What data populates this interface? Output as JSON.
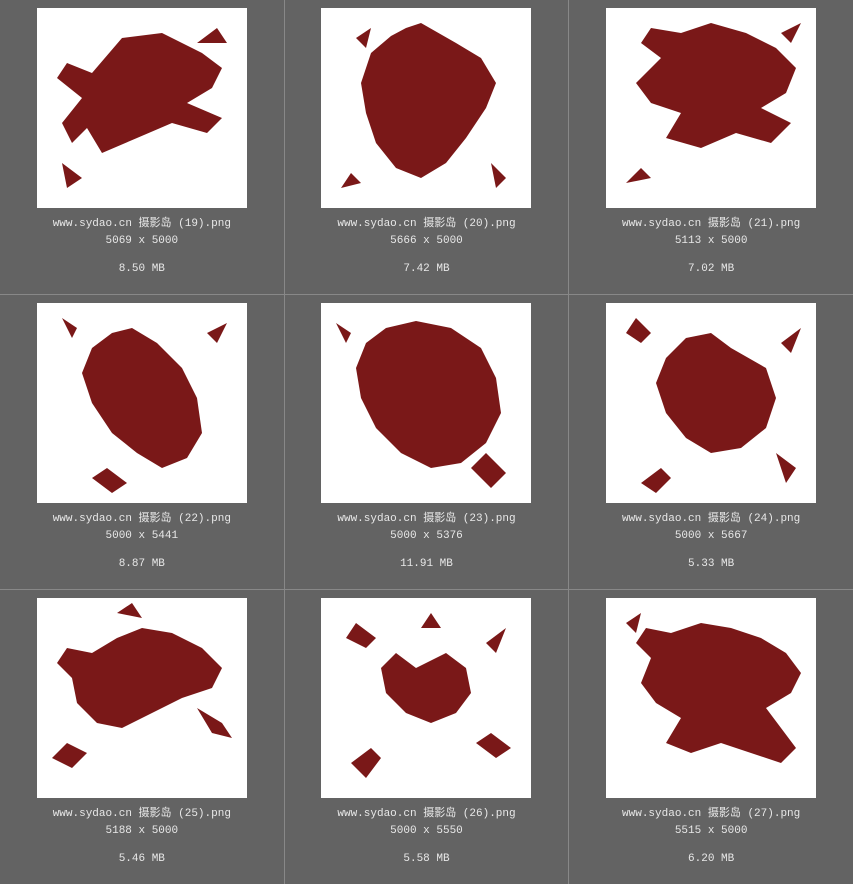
{
  "grid": {
    "columns": 3,
    "rows": 3,
    "background_color": "#636363",
    "divider_color": "#888888",
    "thumb_background": "#ffffff",
    "text_color": "#e8e8e8",
    "font_family": "Courier New, monospace",
    "font_size": 11,
    "splash_color": "#7a1818"
  },
  "items": [
    {
      "filename": "www.sydao.cn 摄影岛 (19).png",
      "dimensions": "5069 x 5000",
      "filesize": "8.50 MB",
      "splash_variant": 0
    },
    {
      "filename": "www.sydao.cn 摄影岛 (20).png",
      "dimensions": "5666 x 5000",
      "filesize": "7.42 MB",
      "splash_variant": 1
    },
    {
      "filename": "www.sydao.cn 摄影岛 (21).png",
      "dimensions": "5113 x 5000",
      "filesize": "7.02 MB",
      "splash_variant": 2
    },
    {
      "filename": "www.sydao.cn 摄影岛 (22).png",
      "dimensions": "5000 x 5441",
      "filesize": "8.87 MB",
      "splash_variant": 3
    },
    {
      "filename": "www.sydao.cn 摄影岛 (23).png",
      "dimensions": "5000 x 5376",
      "filesize": "11.91 MB",
      "splash_variant": 4
    },
    {
      "filename": "www.sydao.cn 摄影岛 (24).png",
      "dimensions": "5000 x 5667",
      "filesize": "5.33 MB",
      "splash_variant": 5
    },
    {
      "filename": "www.sydao.cn 摄影岛 (25).png",
      "dimensions": "5188 x 5000",
      "filesize": "5.46 MB",
      "splash_variant": 6
    },
    {
      "filename": "www.sydao.cn 摄影岛 (26).png",
      "dimensions": "5000 x 5550",
      "filesize": "5.58 MB",
      "splash_variant": 7
    },
    {
      "filename": "www.sydao.cn 摄影岛 (27).png",
      "dimensions": "5515 x 5000",
      "filesize": "6.20 MB",
      "splash_variant": 8
    }
  ],
  "splash_svgs": [
    "M40 90 L15 70 L25 55 L50 65 L80 30 L120 25 L160 45 L180 60 L170 80 L145 95 L180 110 L165 125 L130 115 L95 130 L60 145 L45 120 L30 135 L20 115 Z M155 35 L175 20 L185 35 Z M20 155 L40 170 L25 180 Z",
    "M80 20 L95 15 L130 35 L155 50 L170 75 L160 100 L140 130 L120 155 L95 170 L70 160 L50 135 L40 105 L35 75 L45 45 L65 28 Z M30 30 L45 20 L40 40 Z M165 155 L180 170 L170 180 Z M25 165 L15 180 L35 175 Z",
    "M50 50 L30 35 L40 20 L70 25 L100 15 L135 25 L165 40 L185 60 L175 85 L150 100 L180 115 L160 135 L125 125 L90 140 L55 130 L70 105 L40 95 L25 75 Z M170 25 L190 15 L180 35 Z M30 160 L15 175 L40 170 Z",
    "M70 30 L50 45 L40 70 L50 100 L70 130 L95 150 L120 165 L145 155 L160 130 L155 95 L140 65 L115 40 L90 25 Z M35 25 L20 15 L30 35 Z M165 30 L185 20 L175 40 Z M50 175 L70 190 L85 180 L65 165 Z",
    "M60 25 L40 40 L30 65 L35 95 L50 125 L75 150 L105 165 L135 160 L160 140 L175 110 L170 75 L155 45 L125 25 L90 18 Z M145 165 L165 185 L180 170 L160 150 Z M25 30 L10 20 L20 40 Z",
    "M120 45 L100 30 L75 35 L55 55 L45 80 L55 110 L75 135 L100 150 L130 145 L155 125 L165 95 L155 65 Z M40 30 L25 15 L15 30 L30 40 Z M170 40 L190 25 L180 50 Z M50 165 L30 180 L45 190 L60 175 Z M165 150 L185 165 L175 180 Z",
    "M30 80 L15 65 L25 50 L50 55 L75 40 L100 30 L130 35 L160 50 L180 70 L170 90 L140 100 L110 115 L80 130 L55 125 L35 105 Z M155 110 L180 125 L190 140 L170 135 Z M25 145 L10 160 L30 170 L45 155 Z M75 15 L90 5 L100 20 Z",
    "M90 70 L70 55 L55 70 L60 95 L80 115 L105 125 L130 115 L145 95 L140 70 L120 55 Z M50 40 L30 25 L20 40 L40 50 Z M160 45 L180 30 L170 55 Z M45 150 L25 165 L40 180 L55 160 Z M150 145 L170 160 L185 150 L165 135 Z M95 30 L105 15 L115 30 Z",
    "M40 60 L25 45 L35 30 L60 35 L90 25 L120 30 L150 40 L175 55 L190 75 L180 95 L155 110 L170 130 L185 150 L170 165 L140 155 L110 145 L80 155 L55 145 L70 120 L45 105 L30 85 Z M15 25 L30 15 L25 35 Z"
  ]
}
